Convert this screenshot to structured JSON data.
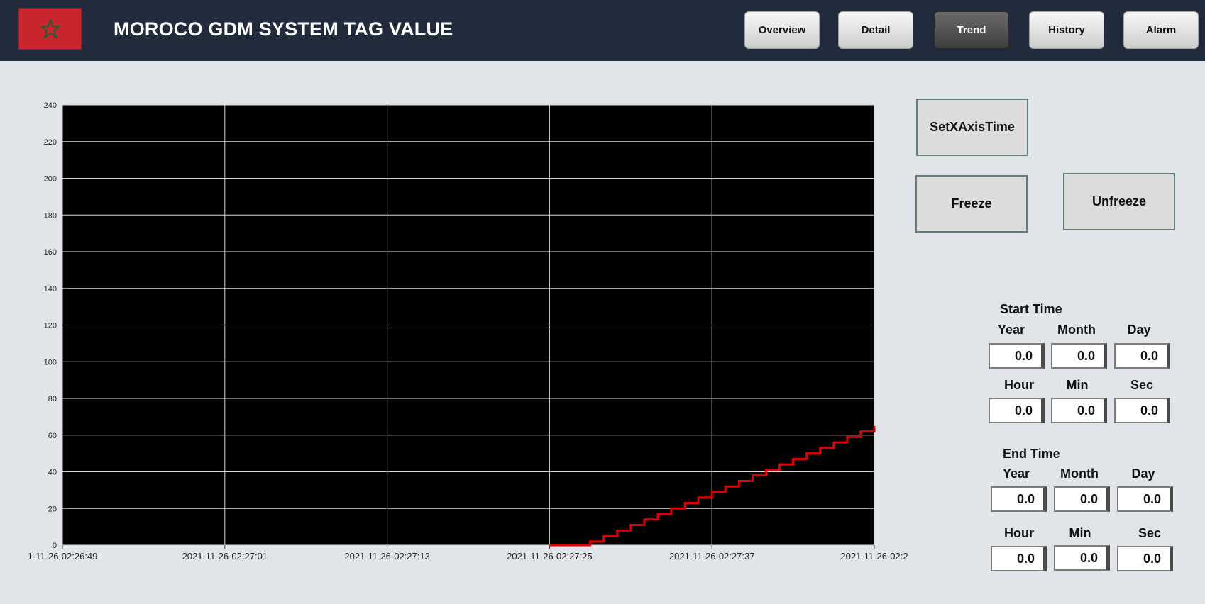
{
  "header": {
    "title": "MOROCO GDM SYSTEM TAG VALUE",
    "nav": [
      {
        "label": "Overview",
        "active": false
      },
      {
        "label": "Detail",
        "active": false
      },
      {
        "label": "Trend",
        "active": true
      },
      {
        "label": "History",
        "active": false
      },
      {
        "label": "Alarm",
        "active": false
      }
    ],
    "flag_colors": {
      "field": "#c8262c",
      "star": "#1f5e33"
    }
  },
  "controls": {
    "set_x_axis_time": "SetXAxisTime",
    "freeze": "Freeze",
    "unfreeze": "Unfreeze"
  },
  "start_time": {
    "label": "Start Time",
    "fields": [
      {
        "label": "Year",
        "value": "0.0"
      },
      {
        "label": "Month",
        "value": "0.0"
      },
      {
        "label": "Day",
        "value": "0.0"
      },
      {
        "label": "Hour",
        "value": "0.0"
      },
      {
        "label": "Min",
        "value": "0.0"
      },
      {
        "label": "Sec",
        "value": "0.0"
      }
    ]
  },
  "end_time": {
    "label": "End Time",
    "fields": [
      {
        "label": "Year",
        "value": "0.0"
      },
      {
        "label": "Month",
        "value": "0.0"
      },
      {
        "label": "Day",
        "value": "0.0"
      },
      {
        "label": "Hour",
        "value": "0.0"
      },
      {
        "label": "Min",
        "value": "0.0"
      },
      {
        "label": "Sec",
        "value": "0.0"
      }
    ]
  },
  "chart_data": {
    "type": "line",
    "title": "",
    "xlabel": "",
    "ylabel": "",
    "ylim": [
      0,
      240
    ],
    "yticks": [
      0,
      20,
      40,
      60,
      80,
      100,
      120,
      140,
      160,
      180,
      200,
      220,
      240
    ],
    "xlim": [
      "2021-11-26 02:26:49",
      "2021-11-26 02:27:49"
    ],
    "xtick_labels": [
      "1-11-26-02:26:49",
      "2021-11-26-02:27:01",
      "2021-11-26-02:27:13",
      "2021-11-26-02:27:25",
      "2021-11-26-02:27:37",
      "2021-11-26-02:2"
    ],
    "grid": true,
    "background": "#000000",
    "series": [
      {
        "color": "#e00000",
        "step": true,
        "points": [
          [
            "2021-11-26 02:27:25",
            0
          ],
          [
            "2021-11-26 02:27:26",
            0
          ],
          [
            "2021-11-26 02:27:27",
            0
          ],
          [
            "2021-11-26 02:27:28",
            2
          ],
          [
            "2021-11-26 02:27:29",
            5
          ],
          [
            "2021-11-26 02:27:30",
            8
          ],
          [
            "2021-11-26 02:27:31",
            11
          ],
          [
            "2021-11-26 02:27:32",
            14
          ],
          [
            "2021-11-26 02:27:33",
            17
          ],
          [
            "2021-11-26 02:27:34",
            20
          ],
          [
            "2021-11-26 02:27:35",
            23
          ],
          [
            "2021-11-26 02:27:36",
            26
          ],
          [
            "2021-11-26 02:27:37",
            29
          ],
          [
            "2021-11-26 02:27:38",
            32
          ],
          [
            "2021-11-26 02:27:39",
            35
          ],
          [
            "2021-11-26 02:27:40",
            38
          ],
          [
            "2021-11-26 02:27:41",
            41
          ],
          [
            "2021-11-26 02:27:42",
            44
          ],
          [
            "2021-11-26 02:27:43",
            47
          ],
          [
            "2021-11-26 02:27:44",
            50
          ],
          [
            "2021-11-26 02:27:45",
            53
          ],
          [
            "2021-11-26 02:27:46",
            56
          ],
          [
            "2021-11-26 02:27:47",
            59
          ],
          [
            "2021-11-26 02:27:48",
            62
          ],
          [
            "2021-11-26 02:27:49",
            65
          ]
        ]
      }
    ]
  }
}
